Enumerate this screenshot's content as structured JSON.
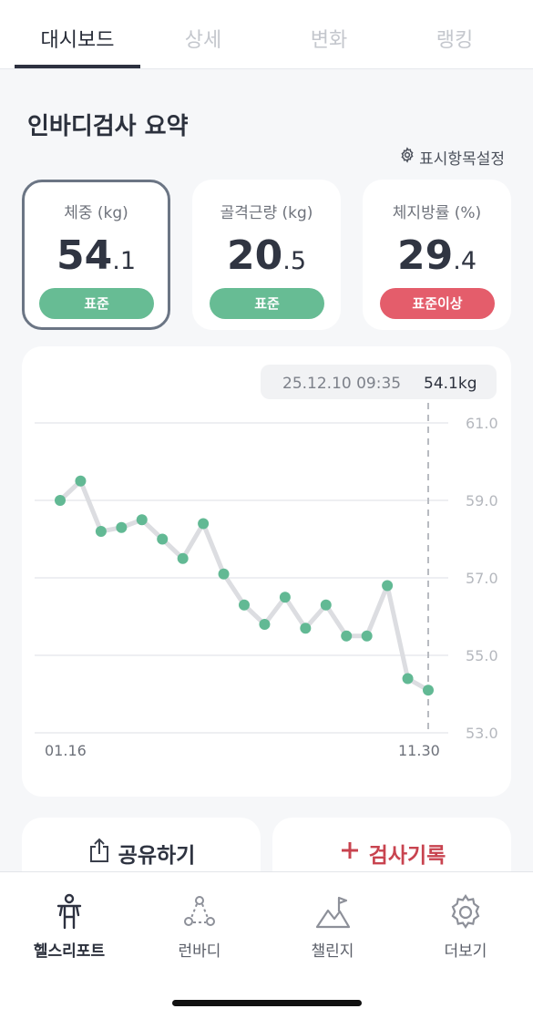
{
  "tabs": [
    {
      "label": "대시보드",
      "active": true
    },
    {
      "label": "상세",
      "active": false
    },
    {
      "label": "변화",
      "active": false
    },
    {
      "label": "랭킹",
      "active": false
    }
  ],
  "summary": {
    "title": "인바디검사 요약",
    "settings_label": "표시항목설정"
  },
  "metrics": [
    {
      "label": "체중 (kg)",
      "int": "54",
      "dec": ".1",
      "status": "표준",
      "status_color": "#67bc94",
      "selected": true
    },
    {
      "label": "골격근량 (kg)",
      "int": "20",
      "dec": ".5",
      "status": "표준",
      "status_color": "#67bc94",
      "selected": false
    },
    {
      "label": "체지방률 (%)",
      "int": "29",
      "dec": ".4",
      "status": "표준이상",
      "status_color": "#e45d6b",
      "selected": false
    }
  ],
  "chart": {
    "tooltip_date": "25.12.10 09:35",
    "tooltip_value": "54.1kg",
    "x_start_label": "01.16",
    "x_end_label": "11.30",
    "line_color": "#dcdde1",
    "point_color": "#62b994"
  },
  "chart_data": {
    "type": "line",
    "title": "",
    "xlabel": "",
    "ylabel": "",
    "ylim": [
      53.0,
      61.0
    ],
    "y_ticks": [
      "61.0",
      "59.0",
      "57.0",
      "55.0",
      "53.0"
    ],
    "x_tick_labels": [
      "01.16",
      "11.30"
    ],
    "grid": true,
    "series": [
      {
        "values": [
          59.0,
          59.5,
          58.2,
          58.3,
          58.5,
          58.0,
          57.5,
          58.4,
          57.1,
          56.3,
          55.8,
          56.5,
          55.7,
          56.3,
          55.5,
          55.5,
          56.8,
          54.4,
          54.1
        ]
      }
    ]
  },
  "actions": {
    "share_label": "공유하기",
    "record_label": "검사기록",
    "record_color": "#c8434f"
  },
  "nav": [
    {
      "label": "헬스리포트",
      "icon": "health-report-icon",
      "active": true
    },
    {
      "label": "런바디",
      "icon": "runbody-icon",
      "active": false
    },
    {
      "label": "챌린지",
      "icon": "challenge-icon",
      "active": false
    },
    {
      "label": "더보기",
      "icon": "more-gear-icon",
      "active": false
    }
  ]
}
